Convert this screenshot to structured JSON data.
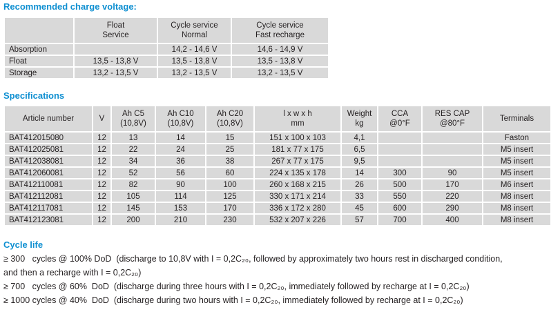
{
  "charge_voltage": {
    "heading": "Recommended charge voltage:",
    "columns": [
      "",
      "Float\nService",
      "Cycle service\nNormal",
      "Cycle service\nFast recharge"
    ],
    "rows": [
      [
        "Absorption",
        "",
        "14,2 - 14,6 V",
        "14,6 - 14,9 V"
      ],
      [
        "Float",
        "13,5 - 13,8 V",
        "13,5 - 13,8 V",
        "13,5 - 13,8 V"
      ],
      [
        "Storage",
        "13,2 - 13,5 V",
        "13,2 - 13,5 V",
        "13,2 - 13,5 V"
      ]
    ]
  },
  "specifications": {
    "heading": "Specifications",
    "columns": [
      "Article number",
      "V",
      "Ah C5\n(10,8V)",
      "Ah C10\n(10,8V)",
      "Ah C20\n(10,8V)",
      "l x w x h\nmm",
      "Weight\nkg",
      "CCA\n@0°F",
      "RES CAP\n@80°F",
      "Terminals"
    ],
    "rows": [
      [
        "BAT412015080",
        "12",
        "13",
        "14",
        "15",
        "151 x 100 x 103",
        "4,1",
        "",
        "",
        "Faston"
      ],
      [
        "BAT412025081",
        "12",
        "22",
        "24",
        "25",
        "181 x 77 x 175",
        "6,5",
        "",
        "",
        "M5 insert"
      ],
      [
        "BAT412038081",
        "12",
        "34",
        "36",
        "38",
        "267 x 77 x 175",
        "9,5",
        "",
        "",
        "M5 insert"
      ],
      [
        "BAT412060081",
        "12",
        "52",
        "56",
        "60",
        "224 x 135 x 178",
        "14",
        "300",
        "90",
        "M5 insert"
      ],
      [
        "BAT412110081",
        "12",
        "82",
        "90",
        "100",
        "260 x 168 x 215",
        "26",
        "500",
        "170",
        "M6 insert"
      ],
      [
        "BAT412112081",
        "12",
        "105",
        "114",
        "125",
        "330 x 171 x 214",
        "33",
        "550",
        "220",
        "M8 insert"
      ],
      [
        "BAT412117081",
        "12",
        "145",
        "153",
        "170",
        "336 x 172 x 280",
        "45",
        "600",
        "290",
        "M8 insert"
      ],
      [
        "BAT412123081",
        "12",
        "200",
        "210",
        "230",
        "532 x 207 x 226",
        "57",
        "700",
        "400",
        "M8 insert"
      ]
    ]
  },
  "cycle_life": {
    "heading": "Cycle life",
    "lines": [
      "≥ 300   cycles @ 100% DoD  (discharge to 10,8V with I = 0,2C₂₀, followed by approximately two hours rest in discharged condition,",
      "and then a recharge with I = 0,2C₂₀)",
      "≥ 700   cycles @ 60%  DoD  (discharge during three hours with I = 0,2C₂₀, immediately followed by recharge at I = 0,2C₂₀)",
      "≥ 1000 cycles @ 40%  DoD  (discharge during two hours with I = 0,2C₂₀, immediately followed by recharge at I = 0,2C₂₀)"
    ]
  },
  "colors": {
    "heading_blue": "#0e8fd1",
    "table_gray": "#d9d9d9"
  }
}
